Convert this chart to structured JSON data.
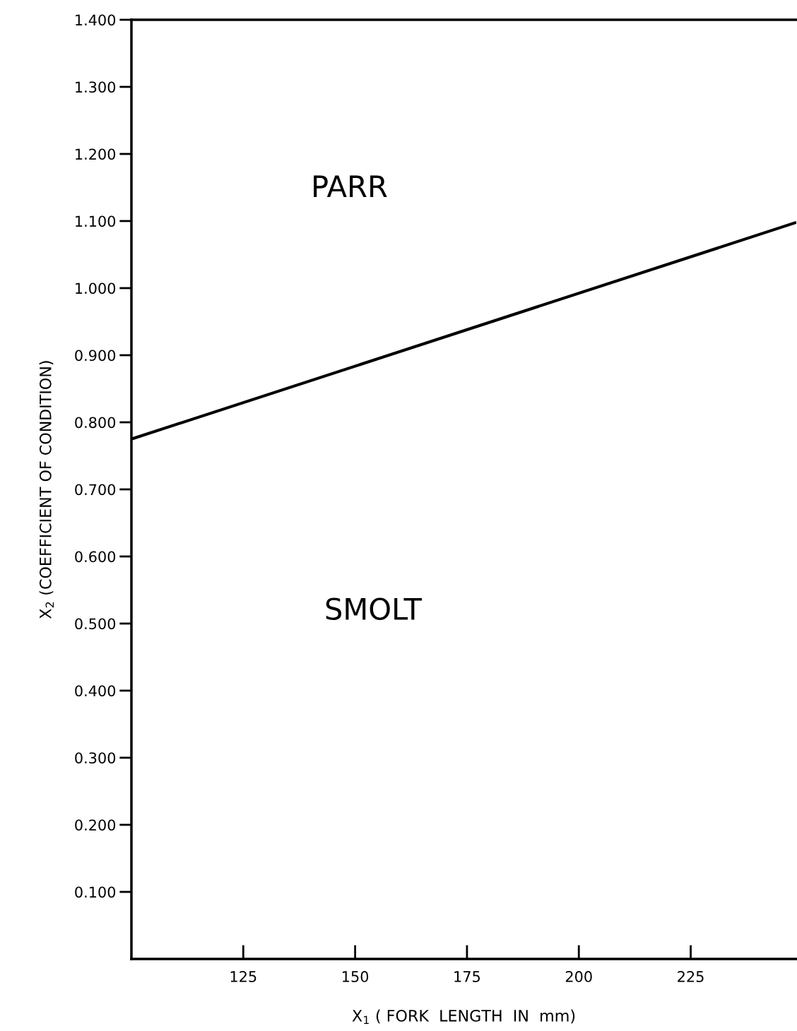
{
  "chart_data": {
    "type": "line",
    "xlabel": "X$_{1}$ ( FORK  LENGTH  IN  mm)",
    "ylabel": "X$_{2}$ (COEFFICIENT OF CONDITION)",
    "series": [
      {
        "color": "#000000",
        "x": [
          100,
          248.6
        ],
        "values": [
          0.775,
          1.098
        ]
      }
    ],
    "xlim": [
      100,
      248.6
    ],
    "ylim": [
      0,
      1.4
    ],
    "xticks": [
      125,
      150,
      175,
      200,
      225
    ],
    "yticks": [
      {
        "value": 0.1,
        "label": "0.100"
      },
      {
        "value": 0.2,
        "label": "0.200"
      },
      {
        "value": 0.3,
        "label": "0.300"
      },
      {
        "value": 0.4,
        "label": "0.400"
      },
      {
        "value": 0.5,
        "label": "0.500"
      },
      {
        "value": 0.6,
        "label": "0.600"
      },
      {
        "value": 0.7,
        "label": "0.700"
      },
      {
        "value": 0.8,
        "label": "0.800"
      },
      {
        "value": 0.9,
        "label": "0.900"
      },
      {
        "value": 1.0,
        "label": "1.000"
      },
      {
        "value": 1.1,
        "label": "1.100"
      },
      {
        "value": 1.2,
        "label": "1.200"
      },
      {
        "value": 1.3,
        "label": "1.300"
      },
      {
        "value": 1.4,
        "label": "1.400"
      }
    ],
    "annotations": [
      "PARR",
      "SMOLT"
    ],
    "grid": false,
    "legend": false,
    "marker": "none",
    "line_style": "solid"
  }
}
